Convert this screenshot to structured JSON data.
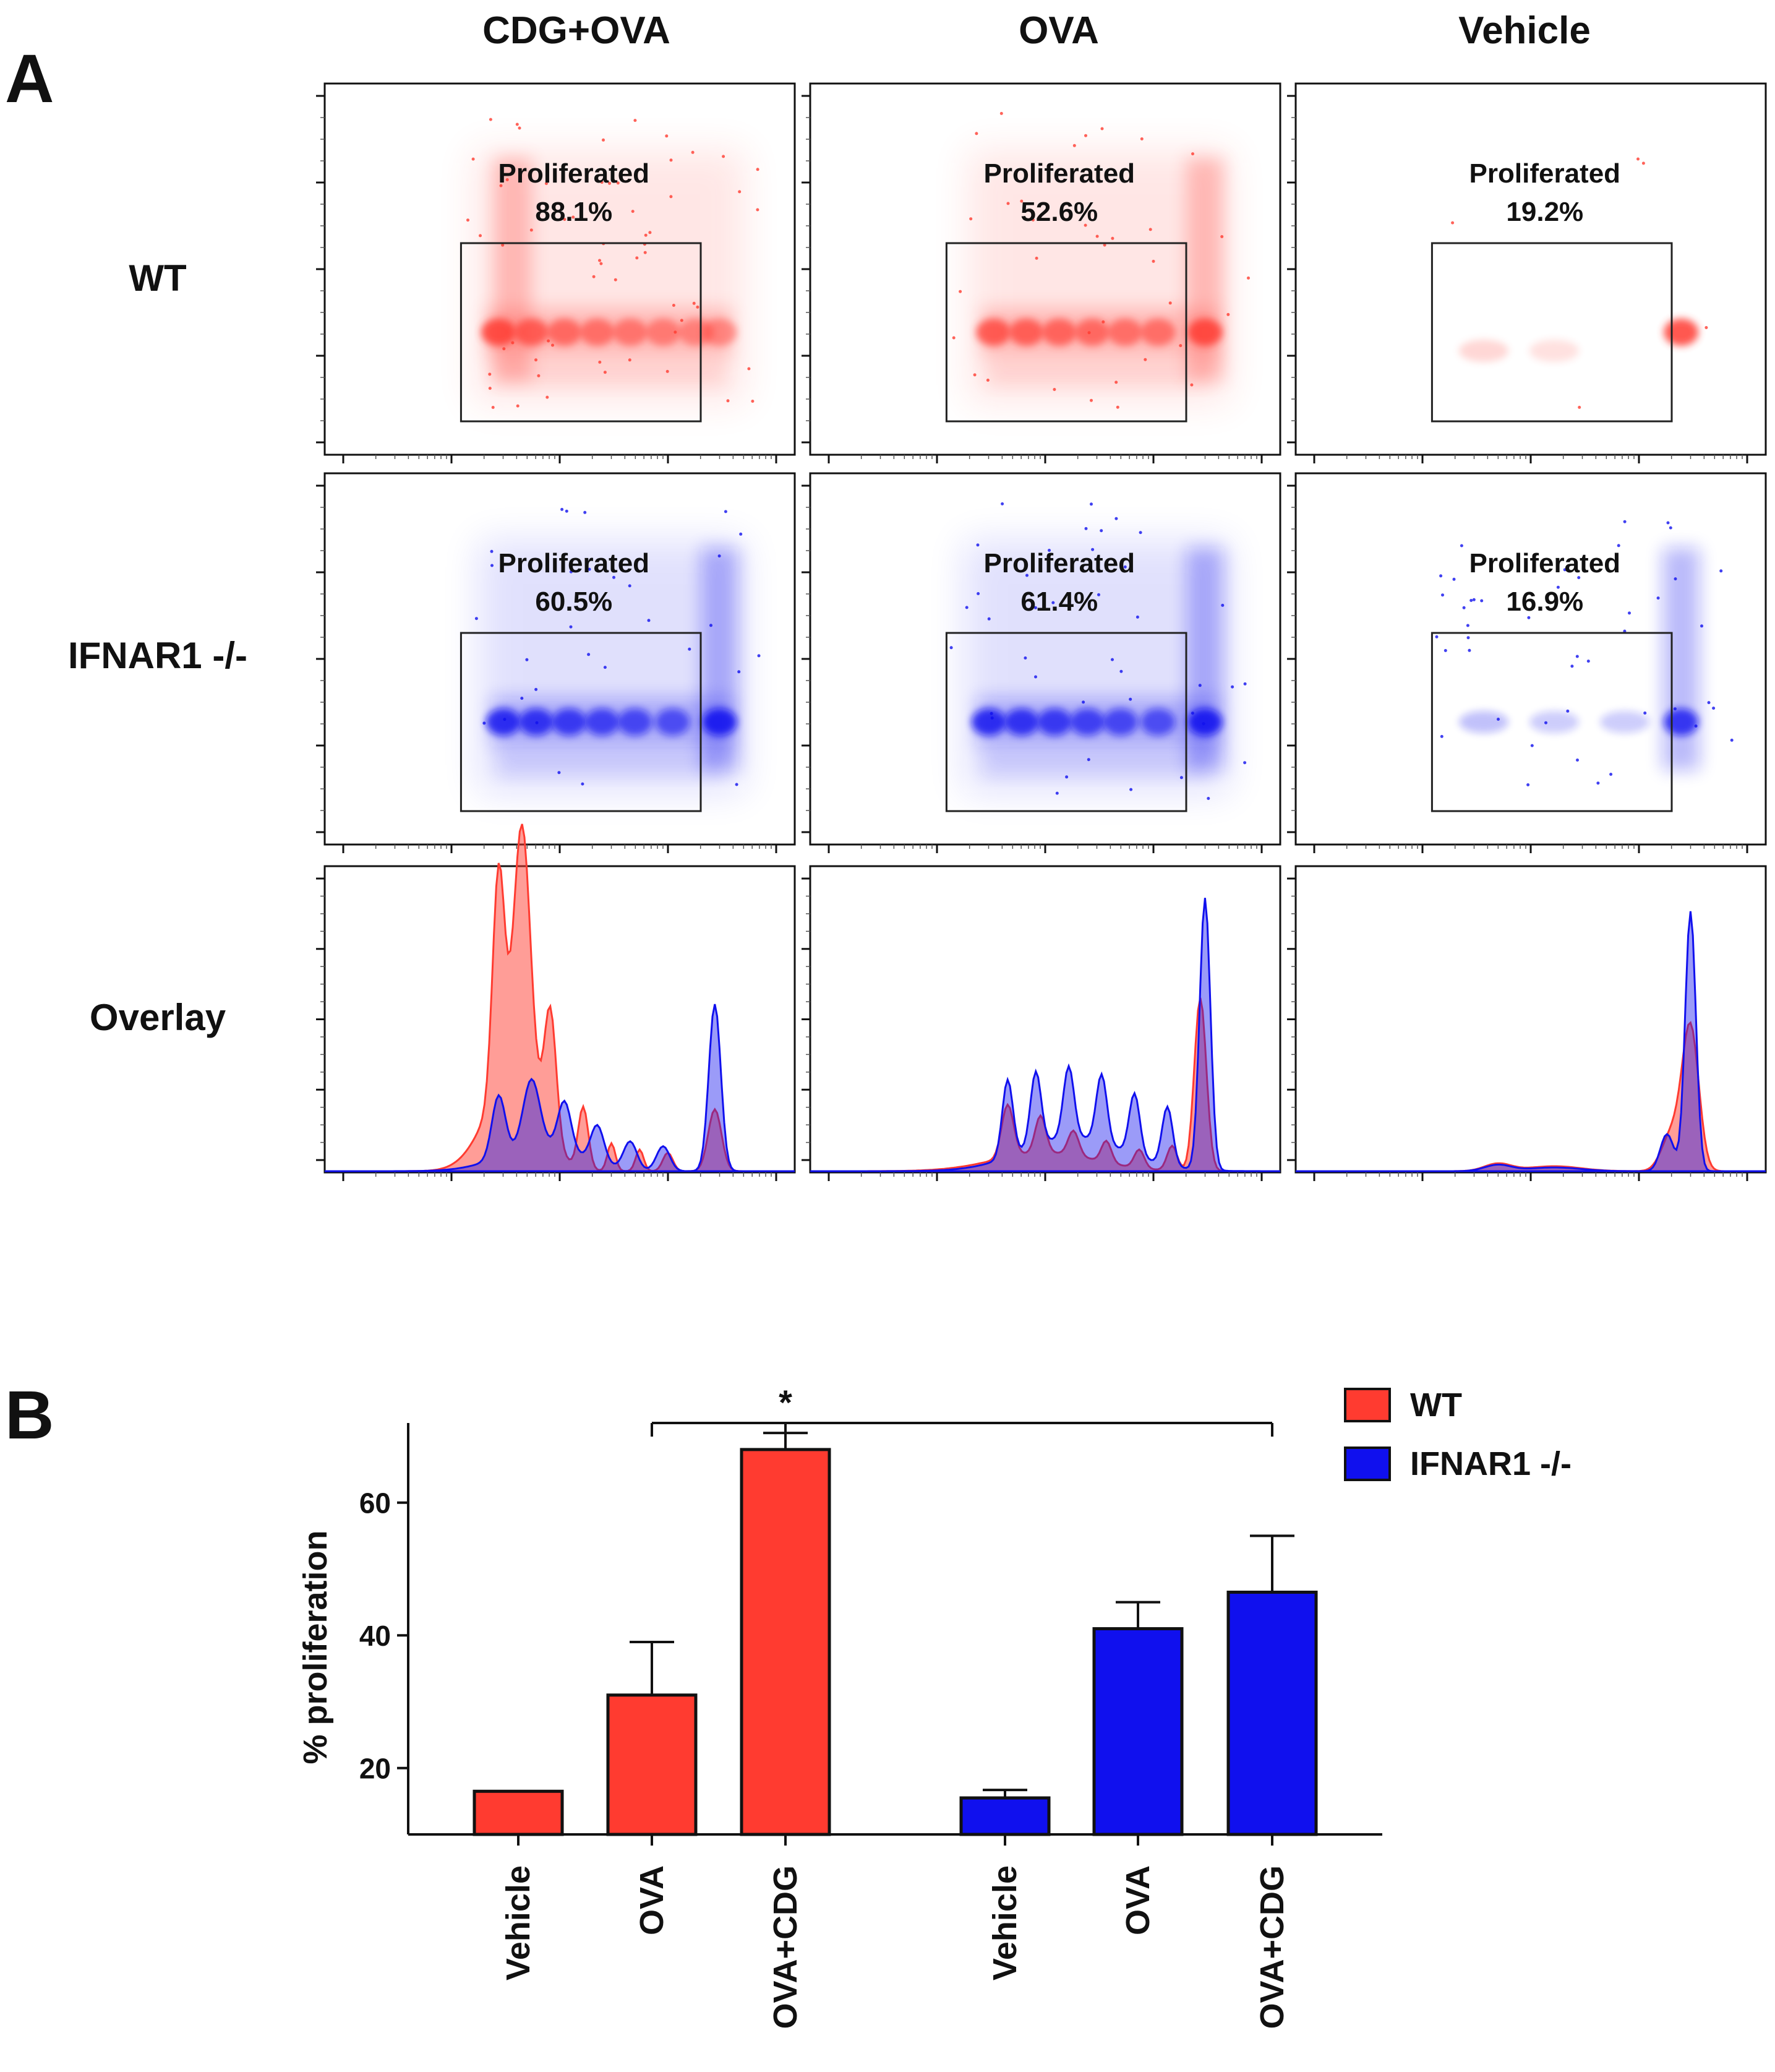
{
  "figure": {
    "panel_a_label": "A",
    "panel_b_label": "B"
  },
  "colors": {
    "wt": "#ff3b30",
    "ifnar": "#1010ee",
    "overlap": "#8a2a9e",
    "axis": "#111111"
  },
  "chart_data": [
    {
      "type": "heatmap",
      "panel": "A",
      "columns": [
        "CDG+OVA",
        "OVA",
        "Vehicle"
      ],
      "rows": [
        "WT",
        "IFNAR1 -/-",
        "Overlay"
      ],
      "gate_label": "Proliferated",
      "gates": [
        {
          "row": "WT",
          "column": "CDG+OVA",
          "value": "88.1%"
        },
        {
          "row": "WT",
          "column": "OVA",
          "value": "52.6%"
        },
        {
          "row": "WT",
          "column": "Vehicle",
          "value": "19.2%"
        },
        {
          "row": "IFNAR1 -/-",
          "column": "CDG+OVA",
          "value": "60.5%"
        },
        {
          "row": "IFNAR1 -/-",
          "column": "OVA",
          "value": "61.4%"
        },
        {
          "row": "IFNAR1 -/-",
          "column": "Vehicle",
          "value": "16.9%"
        }
      ]
    },
    {
      "type": "bar",
      "panel": "B",
      "categories": [
        "Vehicle",
        "OVA",
        "OVA+CDG"
      ],
      "ylabel": "% proliferation",
      "ylim": [
        10,
        72
      ],
      "yticks": [
        20,
        40,
        60
      ],
      "legend": "top-right",
      "significance": "*",
      "significance_between": [
        "WT OVA",
        "IFNAR1 -/- OVA+CDG"
      ],
      "series": [
        {
          "name": "WT",
          "values": [
            16.5,
            31,
            68
          ],
          "errors": [
            0,
            8,
            2.5
          ]
        },
        {
          "name": "IFNAR1 -/-",
          "values": [
            15.5,
            41,
            46.5
          ],
          "errors": [
            1.2,
            4,
            8.5
          ]
        }
      ]
    }
  ]
}
